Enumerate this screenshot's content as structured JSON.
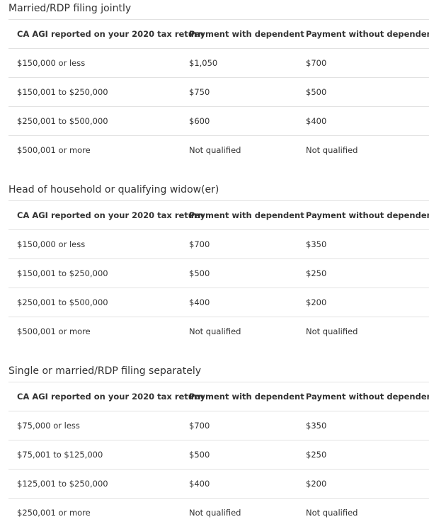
{
  "sections": [
    {
      "title": "Married/RDP filing jointly",
      "headers": [
        "CA AGI reported on your 2020 tax return",
        "Payment with dependent",
        "Payment without dependent"
      ],
      "rows": [
        [
          "$150,000 or less",
          "$1,050",
          "$700"
        ],
        [
          "$150,001 to $250,000",
          "$750",
          "$500"
        ],
        [
          "$250,001 to $500,000",
          "$600",
          "$400"
        ],
        [
          "$500,001 or more",
          "Not qualified",
          "Not qualified"
        ]
      ]
    },
    {
      "title": "Head of household or qualifying widow(er)",
      "headers": [
        "CA AGI reported on your 2020 tax return",
        "Payment with dependent",
        "Payment without dependent"
      ],
      "rows": [
        [
          "$150,000 or less",
          "$700",
          "$350"
        ],
        [
          "$150,001 to $250,000",
          "$500",
          "$250"
        ],
        [
          "$250,001 to $500,000",
          "$400",
          "$200"
        ],
        [
          "$500,001 or more",
          "Not qualified",
          "Not qualified"
        ]
      ]
    },
    {
      "title": "Single or married/RDP filing separately",
      "headers": [
        "CA AGI reported on your 2020 tax return",
        "Payment with dependent",
        "Payment without dependent"
      ],
      "rows": [
        [
          "$75,000 or less",
          "$700",
          "$350"
        ],
        [
          "$75,001 to $125,000",
          "$500",
          "$250"
        ],
        [
          "$125,001 to $250,000",
          "$400",
          "$200"
        ],
        [
          "$250,001 or more",
          "Not qualified",
          "Not qualified"
        ]
      ]
    }
  ]
}
